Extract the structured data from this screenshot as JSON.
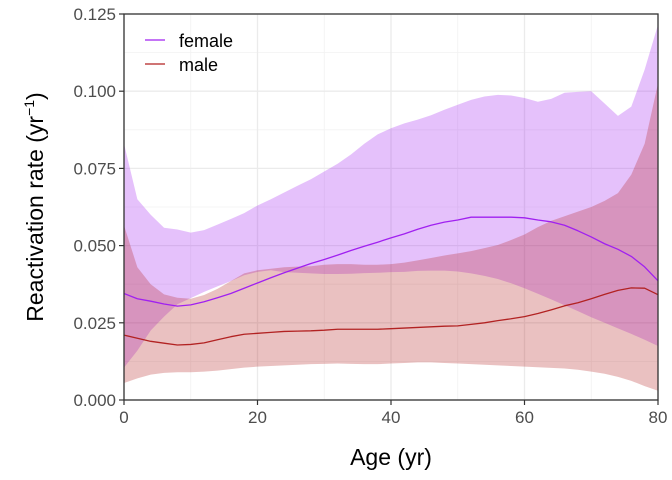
{
  "chart_data": {
    "type": "line",
    "xlabel": "Age (yr)",
    "ylabel_main": "Reactivation rate (yr",
    "ylabel_sup": "−1",
    "ylabel_close": ")",
    "xlim": [
      0,
      80
    ],
    "ylim": [
      0,
      0.125
    ],
    "xticks": [
      0,
      20,
      40,
      60,
      80
    ],
    "xtick_labels": [
      "0",
      "20",
      "40",
      "60",
      "80"
    ],
    "yticks": [
      0,
      0.025,
      0.05,
      0.075,
      0.1,
      0.125
    ],
    "ytick_labels": [
      "0.000",
      "0.025",
      "0.050",
      "0.075",
      "0.100",
      "0.125"
    ],
    "grid": true,
    "legend_position": "top-left",
    "series": [
      {
        "name": "female",
        "line_color": "#a020f0",
        "band_color": "#a020f0",
        "x": [
          0,
          2,
          4,
          6,
          8,
          10,
          12,
          14,
          16,
          18,
          20,
          22,
          24,
          26,
          28,
          30,
          32,
          34,
          36,
          38,
          40,
          42,
          44,
          46,
          48,
          50,
          52,
          54,
          56,
          58,
          60,
          62,
          64,
          66,
          68,
          70,
          72,
          74,
          76,
          78,
          80
        ],
        "mean": [
          0.0345,
          0.0328,
          0.032,
          0.0311,
          0.0304,
          0.0308,
          0.0318,
          0.0331,
          0.0345,
          0.0362,
          0.0379,
          0.0396,
          0.0412,
          0.0427,
          0.0442,
          0.0455,
          0.0469,
          0.0484,
          0.0498,
          0.0511,
          0.0525,
          0.0538,
          0.0553,
          0.0566,
          0.0576,
          0.0583,
          0.0592,
          0.0592,
          0.0592,
          0.0592,
          0.059,
          0.0583,
          0.0577,
          0.0566,
          0.0548,
          0.0528,
          0.0506,
          0.0488,
          0.0465,
          0.0431,
          0.0386
        ],
        "upper": [
          0.083,
          0.065,
          0.06,
          0.0558,
          0.0552,
          0.0542,
          0.055,
          0.0568,
          0.0586,
          0.0605,
          0.063,
          0.065,
          0.0672,
          0.0694,
          0.0715,
          0.074,
          0.0765,
          0.0795,
          0.083,
          0.086,
          0.088,
          0.0896,
          0.0908,
          0.0922,
          0.094,
          0.0956,
          0.0972,
          0.0983,
          0.0988,
          0.0986,
          0.0978,
          0.0966,
          0.0975,
          0.0995,
          0.0998,
          0.1,
          0.096,
          0.092,
          0.095,
          0.107,
          0.1215
        ],
        "lower": [
          0.0105,
          0.016,
          0.0225,
          0.027,
          0.031,
          0.033,
          0.035,
          0.0368,
          0.0385,
          0.0404,
          0.0415,
          0.042,
          0.0414,
          0.0412,
          0.041,
          0.0408,
          0.0408,
          0.0409,
          0.0411,
          0.0412,
          0.0414,
          0.0415,
          0.0418,
          0.0419,
          0.0419,
          0.0416,
          0.041,
          0.0402,
          0.0392,
          0.0378,
          0.0362,
          0.0344,
          0.0326,
          0.0307,
          0.0288,
          0.0268,
          0.025,
          0.0232,
          0.0214,
          0.0195,
          0.0175
        ]
      },
      {
        "name": "male",
        "line_color": "#b22222",
        "band_color": "#b22222",
        "x": [
          0,
          2,
          4,
          6,
          8,
          10,
          12,
          14,
          16,
          18,
          20,
          22,
          24,
          26,
          28,
          30,
          32,
          34,
          36,
          38,
          40,
          42,
          44,
          46,
          48,
          50,
          52,
          54,
          56,
          58,
          60,
          62,
          64,
          66,
          68,
          70,
          72,
          74,
          76,
          78,
          80
        ],
        "mean": [
          0.021,
          0.02,
          0.019,
          0.0184,
          0.0178,
          0.018,
          0.0185,
          0.0195,
          0.0205,
          0.0213,
          0.0216,
          0.0219,
          0.0222,
          0.0223,
          0.0224,
          0.0226,
          0.0229,
          0.0229,
          0.0229,
          0.0229,
          0.0231,
          0.0233,
          0.0235,
          0.0237,
          0.0239,
          0.024,
          0.0245,
          0.025,
          0.0257,
          0.0263,
          0.027,
          0.028,
          0.0292,
          0.0305,
          0.0315,
          0.0328,
          0.0342,
          0.0355,
          0.0363,
          0.0362,
          0.0341
        ],
        "upper": [
          0.0565,
          0.043,
          0.0375,
          0.0342,
          0.0331,
          0.0328,
          0.034,
          0.036,
          0.0385,
          0.041,
          0.042,
          0.0425,
          0.043,
          0.0432,
          0.0433,
          0.0438,
          0.044,
          0.044,
          0.0438,
          0.0438,
          0.044,
          0.0445,
          0.0452,
          0.046,
          0.0468,
          0.0475,
          0.0482,
          0.0492,
          0.0502,
          0.0518,
          0.0536,
          0.056,
          0.058,
          0.0595,
          0.061,
          0.0625,
          0.0645,
          0.067,
          0.073,
          0.083,
          0.1025
        ],
        "lower": [
          0.0055,
          0.007,
          0.0082,
          0.0088,
          0.009,
          0.009,
          0.0092,
          0.0095,
          0.01,
          0.0105,
          0.0108,
          0.011,
          0.0112,
          0.0114,
          0.0116,
          0.0117,
          0.0118,
          0.0117,
          0.0116,
          0.0116,
          0.0118,
          0.012,
          0.0122,
          0.0122,
          0.012,
          0.0118,
          0.0116,
          0.0114,
          0.0112,
          0.011,
          0.0108,
          0.0106,
          0.0104,
          0.0102,
          0.0098,
          0.0092,
          0.0085,
          0.0075,
          0.0062,
          0.0045,
          0.003
        ]
      }
    ]
  }
}
